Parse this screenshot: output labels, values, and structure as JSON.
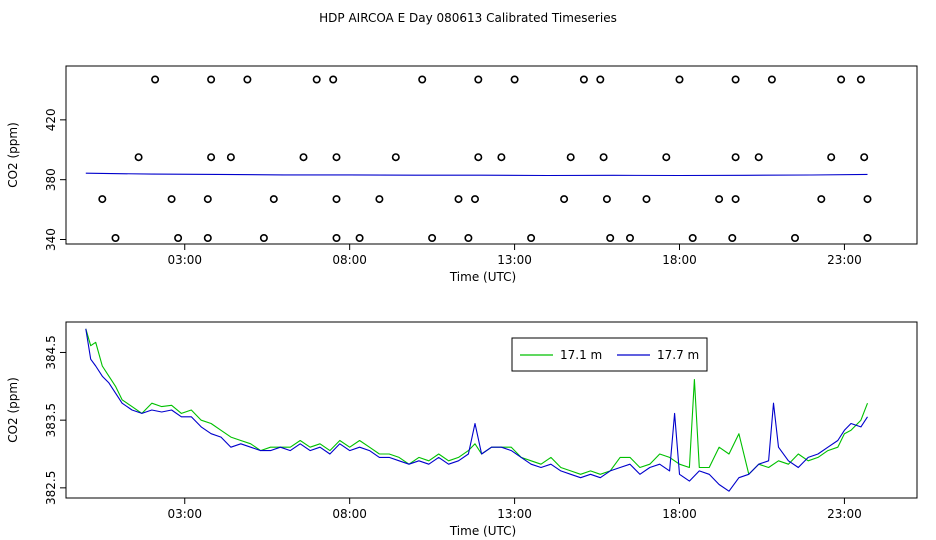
{
  "title": "HDP AIRCOA E  Day 080613  Calibrated Timeseries",
  "colors": {
    "s17_1": "#00c000",
    "s17_7": "#0000cc",
    "axis": "#000000"
  },
  "chart_data": [
    {
      "type": "scatter",
      "xlabel": "Time (UTC)",
      "ylabel": "CO2 (ppm)",
      "xlim": [
        -0.6,
        25.2
      ],
      "ylim": [
        337,
        456
      ],
      "x_ticks": [
        3,
        8,
        13,
        18,
        23
      ],
      "x_tick_labels": [
        "03:00",
        "08:00",
        "13:00",
        "18:00",
        "23:00"
      ],
      "y_ticks": [
        340,
        380,
        420
      ],
      "y_tick_labels": [
        "340",
        "380",
        "420"
      ],
      "grid": false,
      "legend": "none",
      "calibration_points": {
        "x": [
          2.1,
          3.8,
          4.9,
          7.0,
          7.5,
          10.2,
          11.9,
          13.0,
          15.1,
          15.6,
          18.0,
          19.7,
          20.8,
          22.9,
          23.5,
          1.6,
          3.8,
          4.4,
          6.6,
          7.6,
          9.4,
          11.9,
          12.6,
          14.7,
          15.7,
          17.6,
          19.7,
          20.4,
          22.6,
          23.6,
          0.9,
          2.8,
          3.7,
          5.4,
          7.6,
          8.3,
          10.5,
          11.6,
          13.5,
          15.9,
          16.5,
          18.4,
          19.6,
          21.5,
          23.7,
          0.5,
          2.6,
          3.7,
          5.7,
          7.6,
          8.9,
          11.3,
          11.8,
          14.5,
          15.8,
          17.0,
          19.2,
          19.7,
          22.3,
          23.7
        ],
        "y": [
          447,
          447,
          447,
          447,
          447,
          447,
          447,
          447,
          447,
          447,
          447,
          447,
          447,
          447,
          447,
          395,
          395,
          395,
          395,
          395,
          395,
          395,
          395,
          395,
          395,
          395,
          395,
          395,
          395,
          395,
          341,
          341,
          341,
          341,
          341,
          341,
          341,
          341,
          341,
          341,
          341,
          341,
          341,
          341,
          341,
          367,
          367,
          367,
          367,
          367,
          367,
          367,
          367,
          367,
          367,
          367,
          367,
          367,
          367,
          367
        ]
      },
      "series": [
        {
          "x": [
            0,
            2,
            4,
            6,
            8,
            10,
            12,
            14,
            16,
            18,
            20,
            22,
            23.7
          ],
          "y": [
            384.3,
            383.7,
            383.5,
            383.2,
            383.2,
            383.0,
            383.0,
            382.8,
            382.9,
            382.8,
            382.9,
            383.1,
            383.5
          ]
        }
      ]
    },
    {
      "type": "line",
      "xlabel": "Time (UTC)",
      "ylabel": "CO2 (ppm)",
      "xlim": [
        -0.6,
        25.2
      ],
      "ylim": [
        382.35,
        384.95
      ],
      "x_ticks": [
        3,
        8,
        13,
        18,
        23
      ],
      "x_tick_labels": [
        "03:00",
        "08:00",
        "13:00",
        "18:00",
        "23:00"
      ],
      "y_ticks": [
        382.5,
        383.5,
        384.5
      ],
      "y_tick_labels": [
        "382.5",
        "383.5",
        "384.5"
      ],
      "grid": false,
      "legend": "top-right",
      "series": [
        {
          "name": "17.1 m",
          "color": "#00c000",
          "x": [
            0.0,
            0.15,
            0.3,
            0.5,
            0.7,
            0.9,
            1.1,
            1.4,
            1.7,
            2.0,
            2.3,
            2.6,
            2.9,
            3.2,
            3.5,
            3.8,
            4.1,
            4.4,
            4.7,
            5.0,
            5.3,
            5.6,
            5.9,
            6.2,
            6.5,
            6.8,
            7.1,
            7.4,
            7.7,
            8.0,
            8.3,
            8.6,
            8.9,
            9.2,
            9.5,
            9.8,
            10.1,
            10.4,
            10.7,
            11.0,
            11.3,
            11.6,
            11.8,
            12.0,
            12.3,
            12.6,
            12.9,
            13.2,
            13.5,
            13.8,
            14.1,
            14.4,
            14.7,
            15.0,
            15.3,
            15.6,
            15.9,
            16.2,
            16.5,
            16.8,
            17.1,
            17.4,
            17.7,
            18.0,
            18.3,
            18.45,
            18.6,
            18.9,
            19.2,
            19.5,
            19.8,
            20.1,
            20.4,
            20.7,
            21.0,
            21.3,
            21.6,
            21.9,
            22.2,
            22.5,
            22.8,
            23.0,
            23.2,
            23.5,
            23.7
          ],
          "y": [
            384.85,
            384.6,
            384.65,
            384.3,
            384.15,
            384.0,
            383.8,
            383.7,
            383.6,
            383.75,
            383.7,
            383.72,
            383.6,
            383.65,
            383.5,
            383.45,
            383.35,
            383.25,
            383.2,
            383.15,
            383.05,
            383.1,
            383.1,
            383.1,
            383.2,
            383.1,
            383.15,
            383.05,
            383.2,
            383.1,
            383.2,
            383.1,
            383.0,
            383.0,
            382.95,
            382.85,
            382.95,
            382.9,
            383.0,
            382.9,
            382.95,
            383.05,
            383.15,
            383.0,
            383.1,
            383.1,
            383.1,
            382.95,
            382.9,
            382.85,
            382.95,
            382.8,
            382.75,
            382.7,
            382.75,
            382.7,
            382.75,
            382.95,
            382.95,
            382.8,
            382.85,
            383.0,
            382.95,
            382.85,
            382.8,
            384.1,
            382.8,
            382.8,
            383.1,
            383.0,
            383.3,
            382.7,
            382.85,
            382.8,
            382.9,
            382.85,
            383.0,
            382.9,
            382.95,
            383.05,
            383.1,
            383.3,
            383.35,
            383.5,
            383.75
          ]
        },
        {
          "name": "17.7 m",
          "color": "#0000cc",
          "x": [
            0.0,
            0.15,
            0.3,
            0.5,
            0.7,
            0.9,
            1.1,
            1.4,
            1.7,
            2.0,
            2.3,
            2.6,
            2.9,
            3.2,
            3.5,
            3.8,
            4.1,
            4.4,
            4.7,
            5.0,
            5.3,
            5.6,
            5.9,
            6.2,
            6.5,
            6.8,
            7.1,
            7.4,
            7.7,
            8.0,
            8.3,
            8.6,
            8.9,
            9.2,
            9.5,
            9.8,
            10.1,
            10.4,
            10.7,
            11.0,
            11.3,
            11.6,
            11.8,
            12.0,
            12.3,
            12.6,
            12.9,
            13.2,
            13.5,
            13.8,
            14.1,
            14.4,
            14.7,
            15.0,
            15.3,
            15.6,
            15.9,
            16.2,
            16.5,
            16.8,
            17.1,
            17.4,
            17.7,
            17.85,
            18.0,
            18.3,
            18.6,
            18.9,
            19.2,
            19.5,
            19.8,
            20.1,
            20.4,
            20.7,
            20.85,
            21.0,
            21.3,
            21.6,
            21.9,
            22.2,
            22.5,
            22.8,
            23.0,
            23.2,
            23.5,
            23.7
          ],
          "y": [
            384.85,
            384.4,
            384.3,
            384.15,
            384.05,
            383.9,
            383.75,
            383.65,
            383.6,
            383.65,
            383.62,
            383.65,
            383.55,
            383.55,
            383.4,
            383.3,
            383.25,
            383.1,
            383.15,
            383.1,
            383.05,
            383.05,
            383.1,
            383.05,
            383.15,
            383.05,
            383.1,
            383.0,
            383.15,
            383.05,
            383.1,
            383.05,
            382.95,
            382.95,
            382.9,
            382.85,
            382.9,
            382.85,
            382.95,
            382.85,
            382.9,
            383.0,
            383.45,
            383.0,
            383.1,
            383.1,
            383.05,
            382.95,
            382.85,
            382.8,
            382.85,
            382.75,
            382.7,
            382.65,
            382.7,
            382.65,
            382.75,
            382.8,
            382.85,
            382.7,
            382.8,
            382.85,
            382.75,
            383.6,
            382.7,
            382.6,
            382.75,
            382.7,
            382.55,
            382.45,
            382.65,
            382.7,
            382.85,
            382.9,
            383.75,
            383.1,
            382.9,
            382.8,
            382.95,
            383.0,
            383.1,
            383.2,
            383.35,
            383.45,
            383.4,
            383.55
          ]
        }
      ]
    }
  ]
}
